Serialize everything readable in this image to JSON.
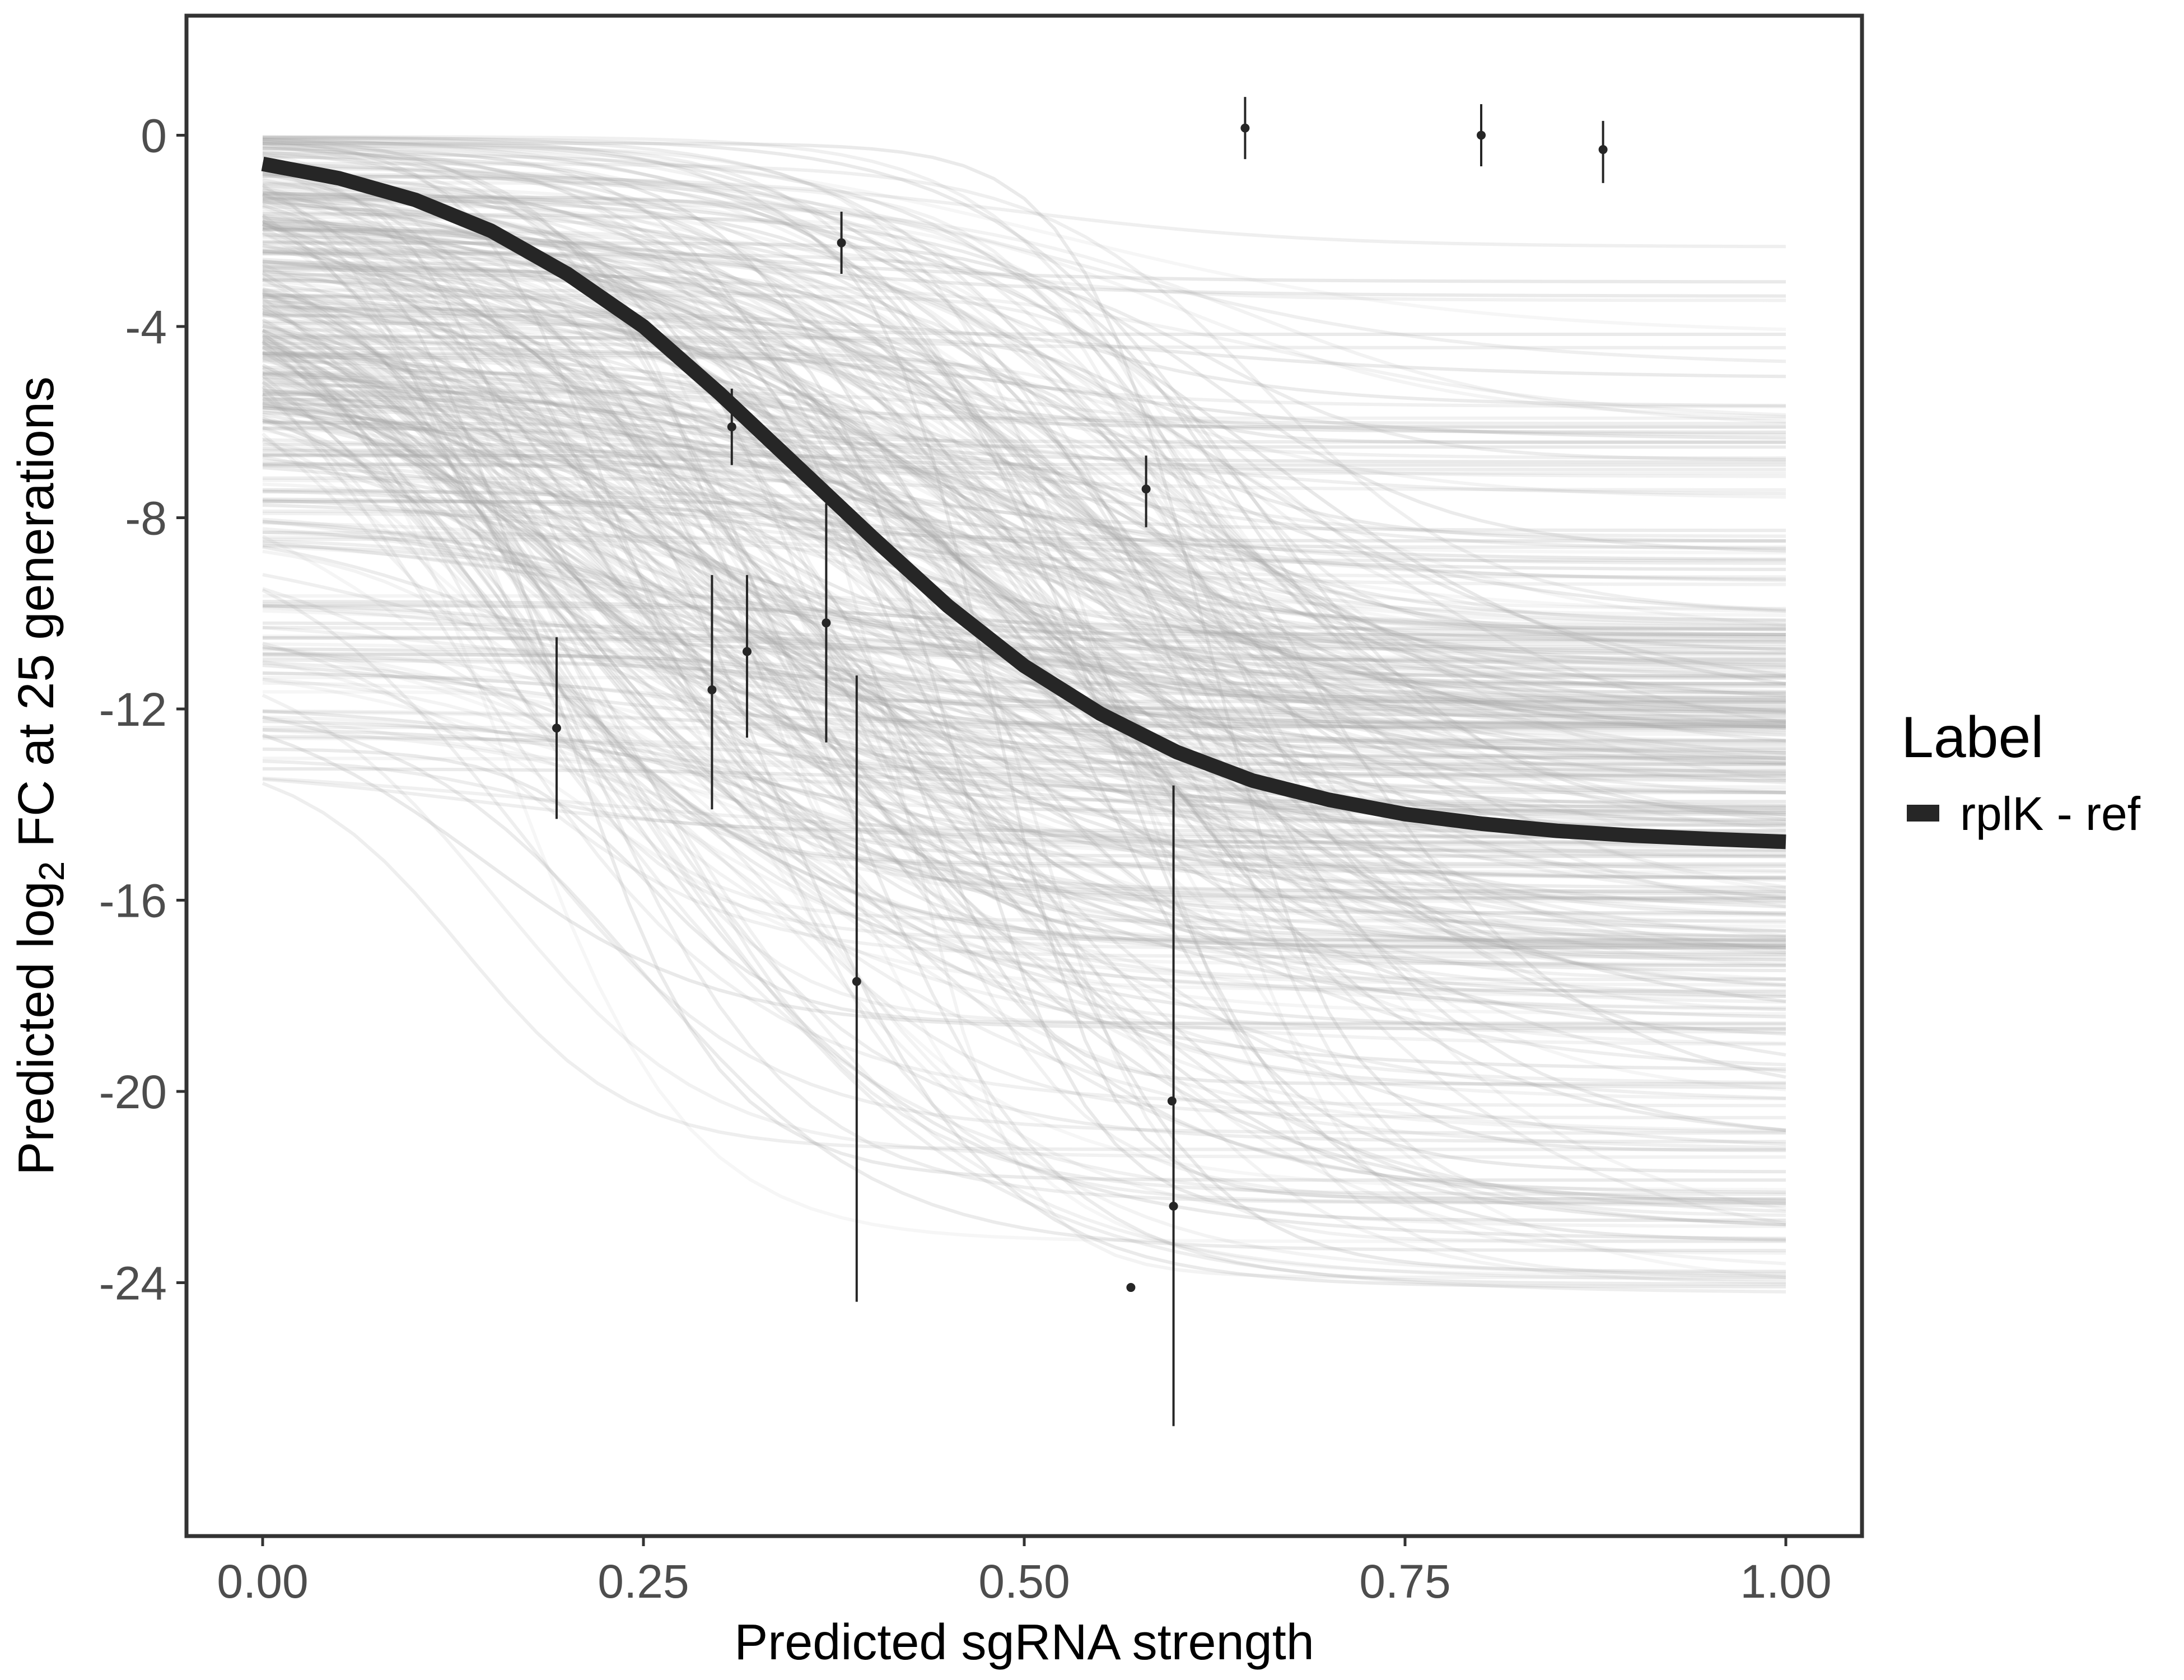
{
  "chart_data": {
    "type": "line",
    "title": "",
    "xlabel": "Predicted sgRNA strength",
    "ylabel": {
      "prefix": "Predicted  log",
      "subscript": "2",
      "suffix": " FC at 25 generations"
    },
    "xlim": [
      -0.05,
      1.05
    ],
    "ylim": [
      -29.3,
      2.5
    ],
    "x_ticks": [
      0.0,
      0.25,
      0.5,
      0.75,
      1.0
    ],
    "x_tick_labels": [
      "0.00",
      "0.25",
      "0.50",
      "0.75",
      "1.00"
    ],
    "y_ticks": [
      0,
      -4,
      -8,
      -12,
      -16,
      -20,
      -24
    ],
    "y_tick_labels": [
      "0",
      "-4",
      "-8",
      "-12",
      "-16",
      "-20",
      "-24"
    ],
    "grid": false,
    "legend": {
      "title": "Label",
      "position": "right",
      "entries": [
        {
          "label": "rplK - ref",
          "color": "#262626"
        }
      ]
    },
    "fit_line": {
      "name": "rplK - ref",
      "color": "#262626",
      "x": [
        0.0,
        0.05,
        0.1,
        0.15,
        0.2,
        0.25,
        0.3,
        0.35,
        0.4,
        0.45,
        0.5,
        0.55,
        0.6,
        0.65,
        0.7,
        0.75,
        0.8,
        0.85,
        0.9,
        0.95,
        1.0
      ],
      "y": [
        -0.6,
        -0.9,
        -1.35,
        -2.0,
        -2.9,
        -4.0,
        -5.4,
        -6.9,
        -8.4,
        -9.85,
        -11.1,
        -12.1,
        -12.9,
        -13.5,
        -13.9,
        -14.2,
        -14.4,
        -14.55,
        -14.65,
        -14.72,
        -14.78
      ]
    },
    "posterior_draws": {
      "name": "posterior draws",
      "color": "#a6a6a6",
      "count": 400
    },
    "points": {
      "name": "observed",
      "color": "#262626",
      "x": [
        0.193,
        0.295,
        0.308,
        0.318,
        0.37,
        0.38,
        0.39,
        0.57,
        0.58,
        0.597,
        0.598,
        0.645,
        0.8,
        0.88
      ],
      "y": [
        -12.4,
        -11.6,
        -6.1,
        -10.8,
        -10.2,
        -2.25,
        -17.7,
        -24.1,
        -7.4,
        -20.2,
        -22.4,
        0.15,
        0.0,
        -0.3
      ],
      "ymin": [
        -14.3,
        -14.1,
        -6.9,
        -12.6,
        -12.7,
        -2.9,
        -24.4,
        -24.1,
        -8.2,
        -20.2,
        -27.0,
        -0.5,
        -0.65,
        -1.0
      ],
      "ymax": [
        -10.5,
        -9.2,
        -5.3,
        -9.2,
        -7.7,
        -1.6,
        -11.3,
        -24.1,
        -6.7,
        -20.2,
        -13.6,
        0.8,
        0.65,
        0.3
      ]
    }
  }
}
